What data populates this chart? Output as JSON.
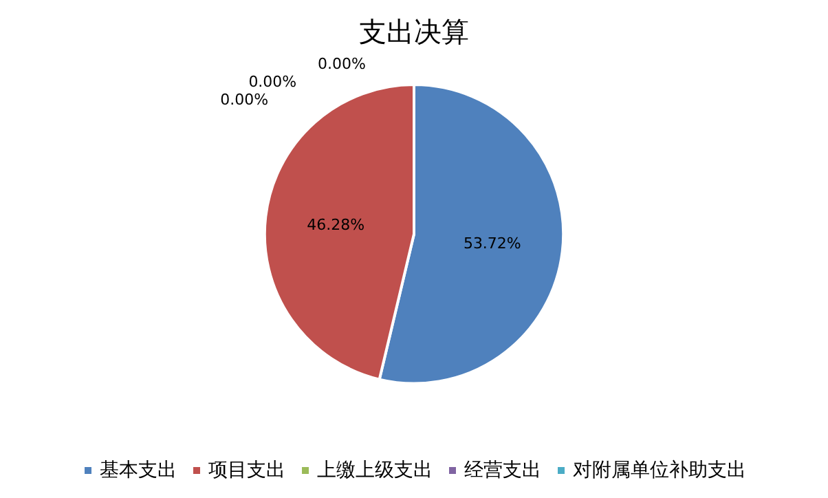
{
  "chart_data": {
    "type": "pie",
    "title": "支出决算",
    "categories": [
      "基本支出",
      "项目支出",
      "上缴上级支出",
      "经营支出",
      "对附属单位补助支出"
    ],
    "values": [
      53.72,
      46.28,
      0,
      0,
      0
    ],
    "colors": [
      "#4f81bd",
      "#c0504d",
      "#9bbb59",
      "#8064a2",
      "#4bacc6"
    ],
    "value_labels": [
      "53.72%",
      "46.28%",
      "0.00%",
      "0.00%",
      "0.00%"
    ],
    "legend": "bottom"
  }
}
